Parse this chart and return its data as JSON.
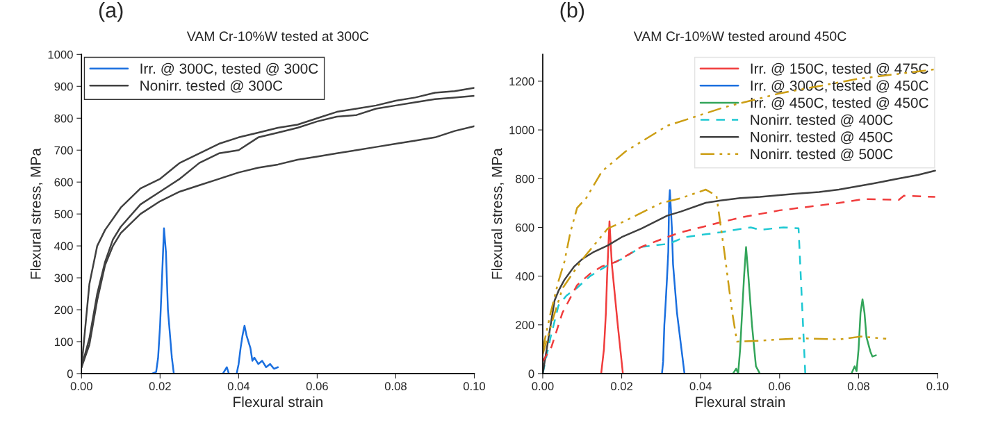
{
  "chart_data": [
    {
      "type": "line",
      "title": "VAM Cr-10%W tested at 300C",
      "xlabel": "Flexural strain",
      "ylabel": "Flexural stress, MPa",
      "annotations": [
        "(a)"
      ],
      "legend": "top left",
      "grid": false,
      "xlim": [
        0,
        0.1
      ],
      "xticks": [
        {
          "value": 0,
          "label": "0.00"
        },
        {
          "value": 0.02,
          "label": "0.02"
        },
        {
          "value": 0.04,
          "label": "0.04"
        },
        {
          "value": 0.06,
          "label": "0.06"
        },
        {
          "value": 0.08,
          "label": "0.08"
        },
        {
          "value": 0.1,
          "label": "0.10"
        }
      ],
      "ylim": [
        0,
        1000
      ],
      "yticks": [
        0,
        100,
        200,
        300,
        400,
        500,
        600,
        700,
        800,
        900,
        1000
      ],
      "series": [
        {
          "name": "Irr. @ 300C, tested @ 300C",
          "color": "#1a6fdf",
          "line_style": "solid",
          "x": [
            0.018,
            0.019,
            0.0195,
            0.02,
            0.0205,
            0.021,
            0.0215,
            0.022,
            0.023,
            0.0235,
            0.03,
            0.036,
            0.037,
            0.0375,
            0.038,
            0.0395,
            0.04,
            0.0405,
            0.041,
            0.0415,
            0.042,
            0.043,
            0.0435,
            0.044,
            0.045,
            0.046,
            0.047,
            0.048,
            0.049,
            0.05
          ],
          "values": [
            0,
            5,
            50,
            150,
            300,
            455,
            380,
            200,
            50,
            0,
            null,
            0,
            20,
            0,
            null,
            0,
            30,
            80,
            120,
            150,
            120,
            80,
            40,
            50,
            30,
            40,
            20,
            30,
            15,
            20
          ]
        },
        {
          "name": "Nonirr. tested @ 300C",
          "color": "#404040",
          "line_style": "solid",
          "x": [
            0,
            0.002,
            0.004,
            0.006,
            0.01,
            0.015,
            0.02,
            0.025,
            0.03,
            0.035,
            0.04,
            0.045,
            0.05,
            0.055,
            0.06,
            0.065,
            0.07,
            0.075,
            0.08,
            0.085,
            0.09,
            0.095,
            0.1
          ],
          "values": [
            20,
            280,
            400,
            450,
            520,
            580,
            610,
            660,
            690,
            720,
            740,
            755,
            770,
            780,
            800,
            820,
            830,
            840,
            855,
            865,
            880,
            885,
            895
          ]
        },
        {
          "color": "#404040",
          "line_style": "solid",
          "x": [
            0,
            0.002,
            0.004,
            0.006,
            0.008,
            0.01,
            0.015,
            0.02,
            0.025,
            0.03,
            0.035,
            0.04,
            0.045,
            0.05,
            0.055,
            0.06,
            0.065,
            0.07,
            0.075,
            0.08,
            0.085,
            0.09,
            0.095,
            0.1
          ],
          "values": [
            20,
            110,
            250,
            350,
            420,
            460,
            530,
            570,
            610,
            660,
            690,
            700,
            740,
            755,
            770,
            790,
            805,
            810,
            830,
            840,
            850,
            860,
            865,
            870
          ]
        },
        {
          "color": "#404040",
          "line_style": "solid",
          "x": [
            0,
            0.002,
            0.004,
            0.006,
            0.008,
            0.01,
            0.015,
            0.02,
            0.025,
            0.03,
            0.035,
            0.04,
            0.045,
            0.05,
            0.055,
            0.06,
            0.065,
            0.07,
            0.075,
            0.08,
            0.085,
            0.09,
            0.095,
            0.1
          ],
          "values": [
            20,
            90,
            230,
            340,
            400,
            440,
            500,
            540,
            570,
            590,
            610,
            630,
            645,
            655,
            670,
            680,
            690,
            700,
            710,
            720,
            730,
            740,
            760,
            775
          ]
        }
      ]
    },
    {
      "type": "line",
      "title": "VAM Cr-10%W tested around 450C",
      "xlabel": "Flexural strain",
      "ylabel": "Flexural stress, MPa",
      "annotations": [
        "(b)"
      ],
      "legend": "top right",
      "grid": false,
      "xlim": [
        0,
        0.1
      ],
      "xticks": [
        {
          "value": 0,
          "label": "0.00"
        },
        {
          "value": 0.02,
          "label": "0.02"
        },
        {
          "value": 0.04,
          "label": "0.04"
        },
        {
          "value": 0.06,
          "label": "0.06"
        },
        {
          "value": 0.08,
          "label": "0.08"
        },
        {
          "value": 0.1,
          "label": "0.10"
        }
      ],
      "ylim": [
        0,
        1310
      ],
      "yticks": [
        0,
        200,
        400,
        600,
        800,
        1000,
        1200
      ],
      "series": [
        {
          "name": "Irr. @ 150C, tested @ 475C",
          "color": "#f03c3c",
          "line_style": "solid",
          "x": [
            0.0148,
            0.0155,
            0.016,
            0.0163,
            0.0169,
            0.0175,
            0.019,
            0.0203
          ],
          "values": [
            0,
            100,
            250,
            400,
            625,
            450,
            200,
            0
          ]
        },
        {
          "name": "Irr. @ 300C, tested @ 450C",
          "color": "#1a6fdf",
          "line_style": "solid",
          "x": [
            0.0302,
            0.0305,
            0.0308,
            0.031,
            0.0315,
            0.0318,
            0.032,
            0.0322,
            0.0327,
            0.033,
            0.034,
            0.0359
          ],
          "values": [
            0,
            50,
            200,
            250,
            400,
            500,
            700,
            753,
            600,
            450,
            250,
            0
          ]
        },
        {
          "name": "Irr. @ 450C, tested @ 450C",
          "color": "#33a55a",
          "line_style": "solid",
          "x": [
            0.0482,
            0.049,
            0.0495,
            0.05,
            0.0505,
            0.051,
            0.0515,
            0.052,
            0.053,
            0.054,
            0.055,
            0.065,
            0.0782,
            0.079,
            0.0795,
            0.08,
            0.0805,
            0.081,
            0.0815,
            0.082,
            0.083,
            0.0835,
            0.0844
          ],
          "values": [
            0,
            20,
            0,
            100,
            250,
            400,
            519,
            420,
            200,
            30,
            0,
            null,
            0,
            30,
            10,
            100,
            250,
            305,
            250,
            150,
            90,
            70,
            75
          ]
        },
        {
          "name": "Nonirr. tested @ 400C",
          "color": "#1ec8d2",
          "line_style": "dashed",
          "x": [
            0,
            0.002,
            0.004,
            0.006,
            0.0087,
            0.012,
            0.016,
            0.02,
            0.025,
            0.0315,
            0.033,
            0.036,
            0.045,
            0.0527,
            0.055,
            0.061,
            0.0648,
            0.0665,
            0.068
          ],
          "values": [
            0,
            150,
            280,
            320,
            352,
            400,
            440,
            470,
            520,
            532,
            540,
            560,
            580,
            600,
            590,
            600,
            596,
            0,
            0
          ]
        },
        {
          "name": "Nonirr. tested @ 450C",
          "color": "#404040",
          "line_style": "solid",
          "x": [
            0,
            0.001,
            0.002,
            0.003,
            0.004,
            0.0055,
            0.008,
            0.01,
            0.013,
            0.0165,
            0.02,
            0.025,
            0.0315,
            0.035,
            0.0413,
            0.045,
            0.05,
            0.055,
            0.064,
            0.07,
            0.075,
            0.0837,
            0.09,
            0.095,
            0.0994
          ],
          "values": [
            0,
            100,
            200,
            300,
            340,
            385,
            440,
            470,
            500,
            526,
            560,
            595,
            648,
            665,
            701,
            710,
            720,
            725,
            738,
            745,
            755,
            780,
            800,
            815,
            833
          ]
        },
        {
          "name": "Nonirr. tested @ 500C",
          "color": "#cc9e14",
          "line_style": "dashdot",
          "x": [
            0,
            0.002,
            0.004,
            0.0055,
            0.007,
            0.0087,
            0.011,
            0.015,
            0.021,
            0.0315,
            0.046,
            0.06,
            0.07,
            0.08,
            0.09,
            0.1
          ],
          "values": [
            100,
            250,
            380,
            460,
            580,
            680,
            720,
            830,
            912,
            1017,
            1093,
            1150,
            1180,
            1210,
            1230,
            1250
          ]
        },
        {
          "color": "#f03c3c",
          "line_style": "dashed",
          "x": [
            0,
            0.0022,
            0.005,
            0.0087,
            0.012,
            0.015,
            0.0185,
            0.025,
            0.0315,
            0.035,
            0.04,
            0.0446,
            0.05,
            0.055,
            0.06,
            0.065,
            0.07,
            0.075,
            0.0811,
            0.085,
            0.0902,
            0.0915,
            0.0994
          ],
          "values": [
            50,
            109,
            250,
            363,
            410,
            440,
            458,
            520,
            560,
            580,
            600,
            619,
            640,
            655,
            670,
            680,
            690,
            700,
            716,
            715,
            713,
            730,
            725
          ]
        },
        {
          "color": "#cc9e14",
          "line_style": "dashdot",
          "x": [
            0,
            0.0028,
            0.005,
            0.01,
            0.0165,
            0.02,
            0.025,
            0.03,
            0.035,
            0.0413,
            0.044,
            0.046,
            0.048,
            0.0492,
            0.055,
            0.065,
            0.075,
            0.0805,
            0.087
          ],
          "values": [
            80,
            236,
            350,
            468,
            596,
            620,
            660,
            700,
            720,
            755,
            730,
            500,
            250,
            131,
            135,
            145,
            140,
            152,
            143
          ]
        }
      ]
    }
  ]
}
